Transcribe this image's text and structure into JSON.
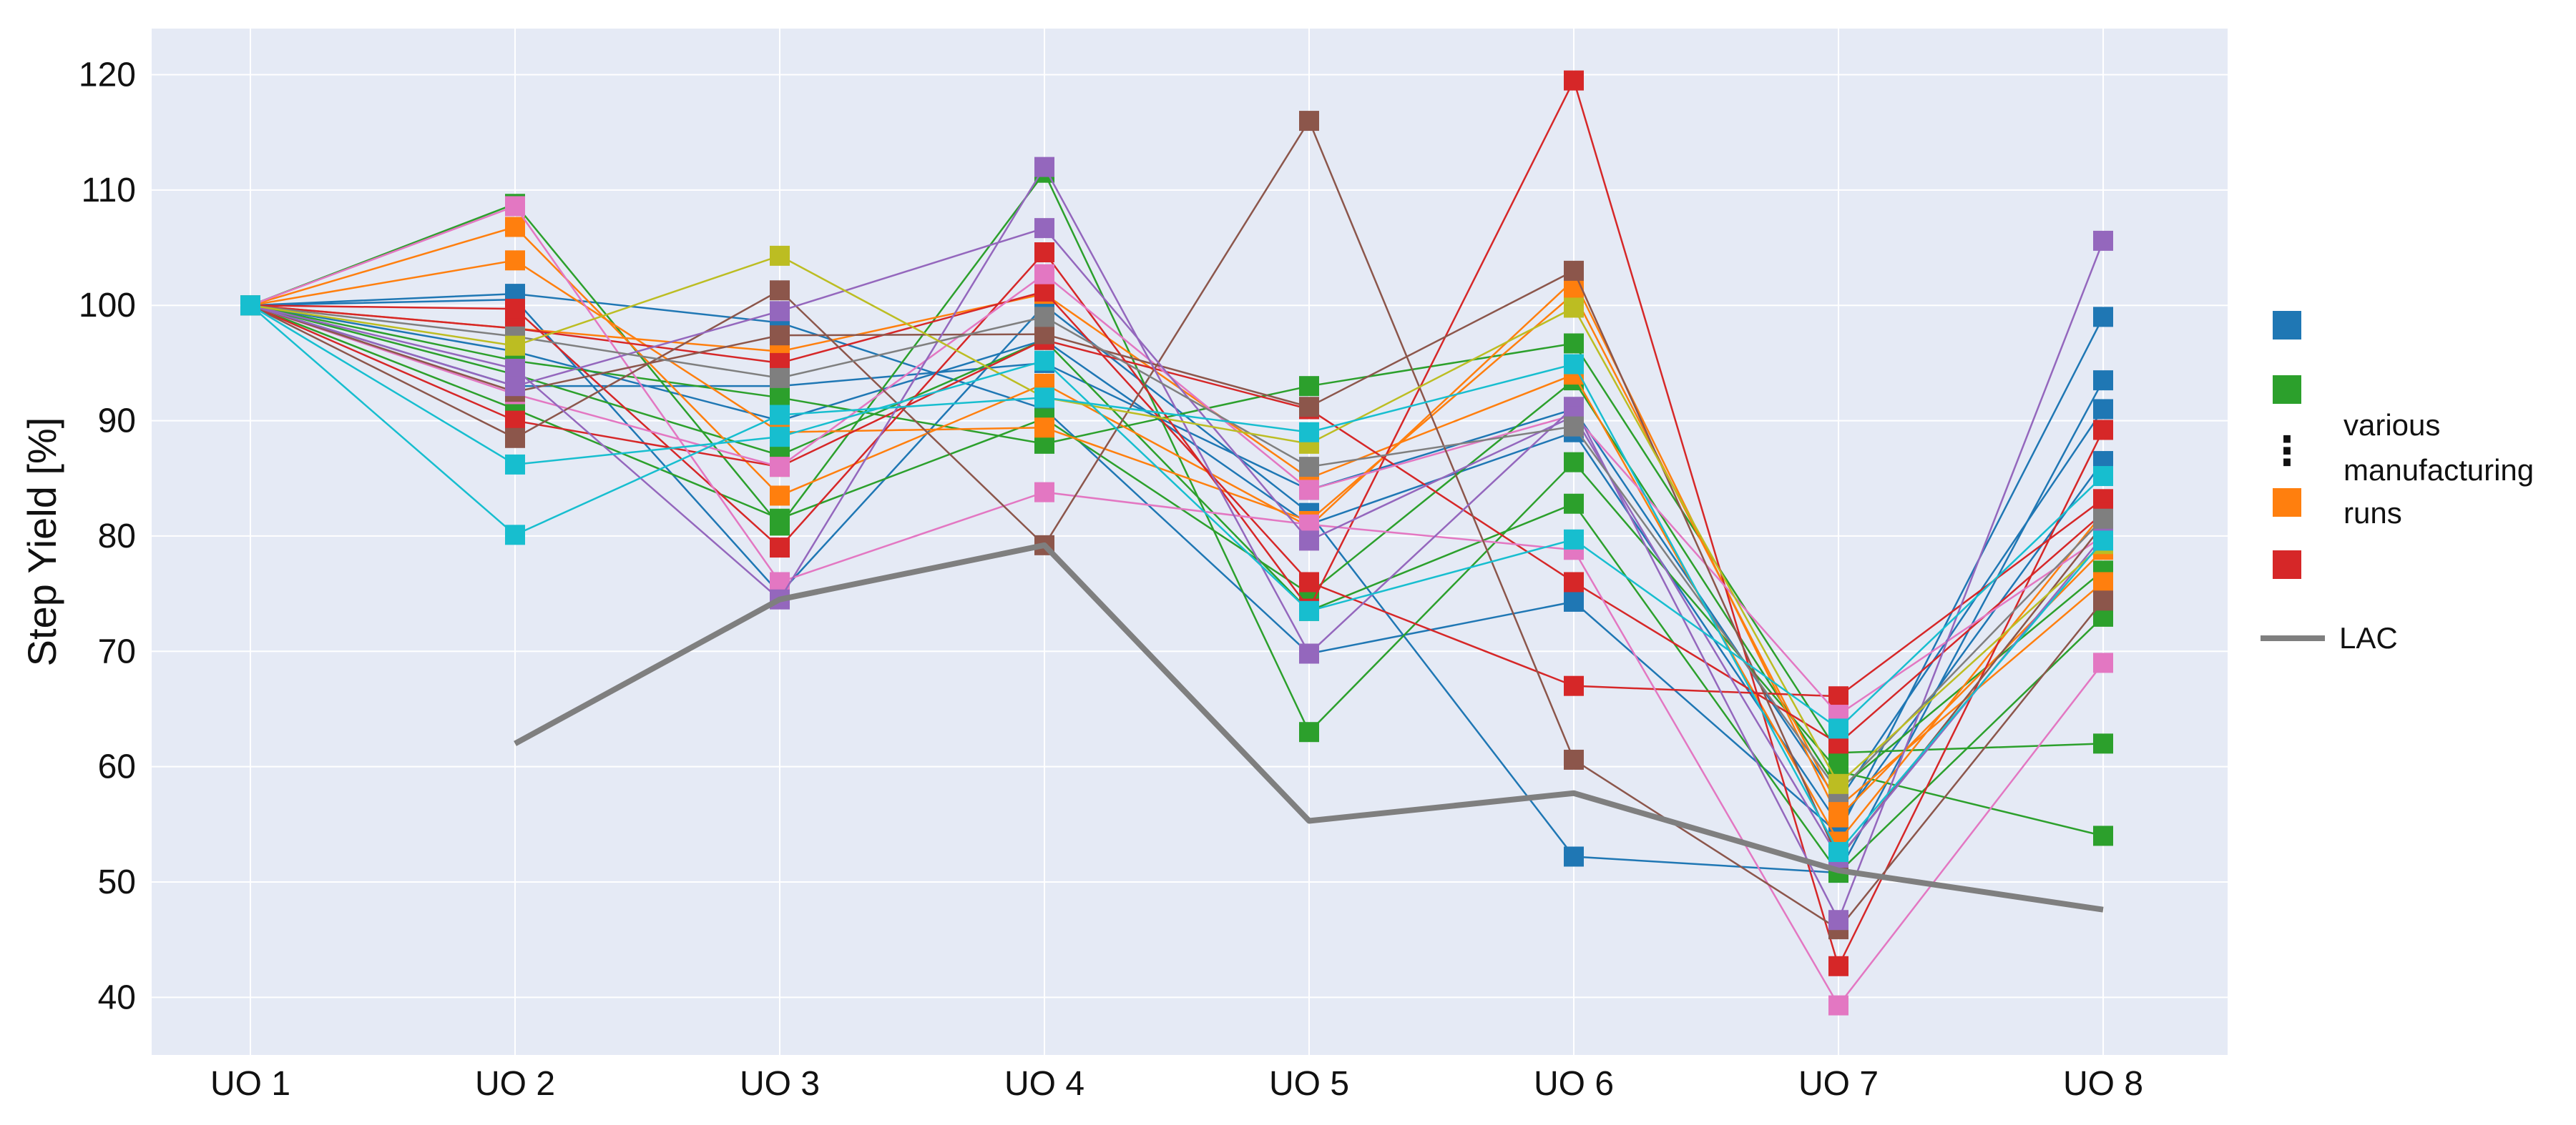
{
  "chart_data": {
    "type": "line",
    "title": "",
    "xlabel": "",
    "ylabel": "Step Yield [%]",
    "categories": [
      "UO 1",
      "UO 2",
      "UO 3",
      "UO 4",
      "UO 5",
      "UO 6",
      "UO 7",
      "UO 8"
    ],
    "ylim": [
      35,
      124
    ],
    "yticks": [
      40,
      50,
      60,
      70,
      80,
      90,
      100,
      110,
      120
    ],
    "grid": true,
    "marker": "square",
    "legend": {
      "placement": "right",
      "marker_colors": [
        "#1f77b4",
        "#2ca02c",
        "#ff7f0e",
        "#d62728"
      ],
      "ellipsis": "⋮",
      "label_lines": [
        "various",
        "manufacturing",
        "runs"
      ],
      "line_label": "LAC",
      "line_color": "#7f7f7f"
    },
    "lac": {
      "name": "LAC",
      "color": "#7f7f7f",
      "values": [
        null,
        62,
        74.5,
        79.2,
        55.3,
        57.7,
        51,
        47.6
      ]
    },
    "series": [
      {
        "color": "#1f77b4",
        "values": [
          100,
          101,
          98.5,
          91,
          69.8,
          74.3,
          54.2,
          99
        ]
      },
      {
        "color": "#1f77b4",
        "values": [
          100,
          100.5,
          75,
          100,
          82,
          52.2,
          50.8,
          93.5
        ]
      },
      {
        "color": "#1f77b4",
        "values": [
          100,
          96,
          90,
          97,
          81,
          89,
          55,
          86.5
        ]
      },
      {
        "color": "#1f77b4",
        "values": [
          100,
          93,
          93,
          95,
          84,
          91,
          57,
          91
        ]
      },
      {
        "color": "#2ca02c",
        "values": [
          100,
          108.8,
          80.9,
          111.5,
          63,
          86.4,
          59.6,
          54
        ]
      },
      {
        "color": "#2ca02c",
        "values": [
          100,
          95.2,
          92,
          88,
          93,
          96.7,
          61.2,
          62
        ]
      },
      {
        "color": "#2ca02c",
        "values": [
          100,
          94,
          87,
          97,
          73.5,
          82.8,
          50.8,
          73
        ]
      },
      {
        "color": "#2ca02c",
        "values": [
          100,
          91,
          81.5,
          90.2,
          75,
          93.5,
          58,
          77
        ]
      },
      {
        "color": "#ff7f0e",
        "values": [
          100,
          106.8,
          83.5,
          93.2,
          80.8,
          102.2,
          55.6,
          78.8
        ]
      },
      {
        "color": "#ff7f0e",
        "values": [
          100,
          103.9,
          89,
          89.4,
          81.3,
          101,
          56.5,
          76
        ]
      },
      {
        "color": "#ff7f0e",
        "values": [
          100,
          98,
          96,
          101,
          85,
          94,
          53.5,
          82
        ]
      },
      {
        "color": "#d62728",
        "values": [
          100,
          99.7,
          79,
          104.6,
          73.7,
          119.5,
          42.7,
          89.2
        ]
      },
      {
        "color": "#d62728",
        "values": [
          100,
          98,
          95,
          101.2,
          76,
          67,
          66.1,
          83.2
        ]
      },
      {
        "color": "#d62728",
        "values": [
          100,
          90,
          86,
          97,
          91,
          76,
          62,
          82
        ]
      },
      {
        "color": "#e377c2",
        "values": [
          100,
          108.6,
          76,
          83.8,
          81,
          78.8,
          39.3,
          69
        ]
      },
      {
        "color": "#e377c2",
        "values": [
          100,
          92.3,
          86,
          102.7,
          84,
          90.5,
          64.5,
          80
        ]
      },
      {
        "color": "#8c564b",
        "values": [
          100,
          88.5,
          101.3,
          79.2,
          116,
          60.6,
          45.9,
          74.4
        ]
      },
      {
        "color": "#8c564b",
        "values": [
          100,
          92.5,
          97.4,
          97.5,
          91.2,
          103,
          52,
          81
        ]
      },
      {
        "color": "#9467bd",
        "values": [
          100,
          94.5,
          74.5,
          112,
          69.8,
          91.2,
          46.7,
          105.6
        ]
      },
      {
        "color": "#9467bd",
        "values": [
          100,
          93,
          99.5,
          106.7,
          79.6,
          90.4,
          52.1,
          80
        ]
      },
      {
        "color": "#7f7f7f",
        "values": [
          100,
          97.3,
          93.7,
          99,
          86,
          89.5,
          57.8,
          81.5
        ]
      },
      {
        "color": "#bcbd22",
        "values": [
          100,
          96.5,
          104.3,
          92,
          88,
          99.8,
          58.5,
          79.3
        ]
      },
      {
        "color": "#17becf",
        "values": [
          100,
          86.2,
          88.6,
          95.2,
          73.5,
          79.7,
          63.3,
          85.2
        ]
      },
      {
        "color": "#17becf",
        "values": [
          100,
          80.1,
          90.5,
          92,
          89,
          94.9,
          52.6,
          79.6
        ]
      }
    ]
  }
}
